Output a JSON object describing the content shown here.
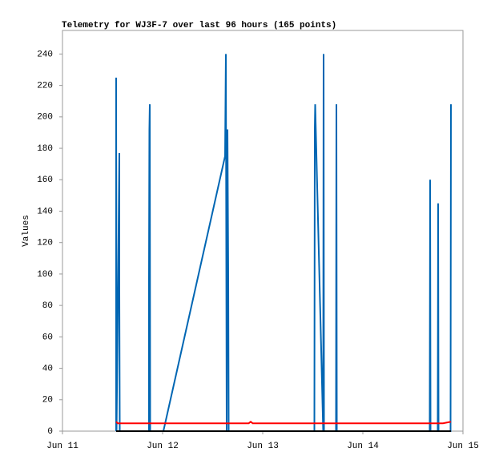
{
  "chart_data": {
    "type": "line",
    "title": "Telemetry for WJ3F-7 over last 96 hours (165 points)",
    "y_label": "Values",
    "xlim": [
      0,
      4
    ],
    "xticks": [
      {
        "value": 0,
        "label": "Jun 11"
      },
      {
        "value": 1,
        "label": "Jun 12"
      },
      {
        "value": 2,
        "label": "Jun 13"
      },
      {
        "value": 3,
        "label": "Jun 14"
      },
      {
        "value": 4,
        "label": "Jun 15"
      }
    ],
    "ylim": [
      0,
      255
    ],
    "yticks": [
      0,
      20,
      40,
      60,
      80,
      100,
      120,
      140,
      160,
      180,
      200,
      220,
      240
    ],
    "series": [
      {
        "color": "#0066b3",
        "x": [
          0.536,
          0.536,
          0.54,
          0.568,
          0.568,
          0.572,
          0.864,
          0.864,
          0.868,
          0.872,
          0.876,
          1.008,
          1.624,
          1.632,
          1.64,
          1.648,
          1.656,
          1.66,
          2.516,
          2.52,
          2.524,
          2.604,
          2.608,
          2.612,
          2.732,
          2.736,
          2.74,
          3.668,
          3.672,
          3.676,
          3.748,
          3.752,
          3.756,
          3.876,
          3.88
        ],
        "values": [
          0,
          225,
          0,
          177,
          88,
          0,
          0,
          97,
          192,
          208,
          0,
          0,
          175,
          240,
          0,
          192,
          97,
          0,
          0,
          192,
          208,
          0,
          240,
          0,
          0,
          208,
          0,
          0,
          160,
          0,
          0,
          145,
          0,
          0,
          208
        ]
      },
      {
        "color": "#ff0000",
        "x": [
          0.536,
          0.552,
          1.86,
          1.88,
          1.9,
          3.8,
          3.88
        ],
        "values": [
          6,
          5,
          5,
          6,
          5,
          5,
          6
        ]
      },
      {
        "color": "#000000",
        "x": [
          0.536,
          3.88
        ],
        "values": [
          0,
          0
        ]
      }
    ]
  }
}
